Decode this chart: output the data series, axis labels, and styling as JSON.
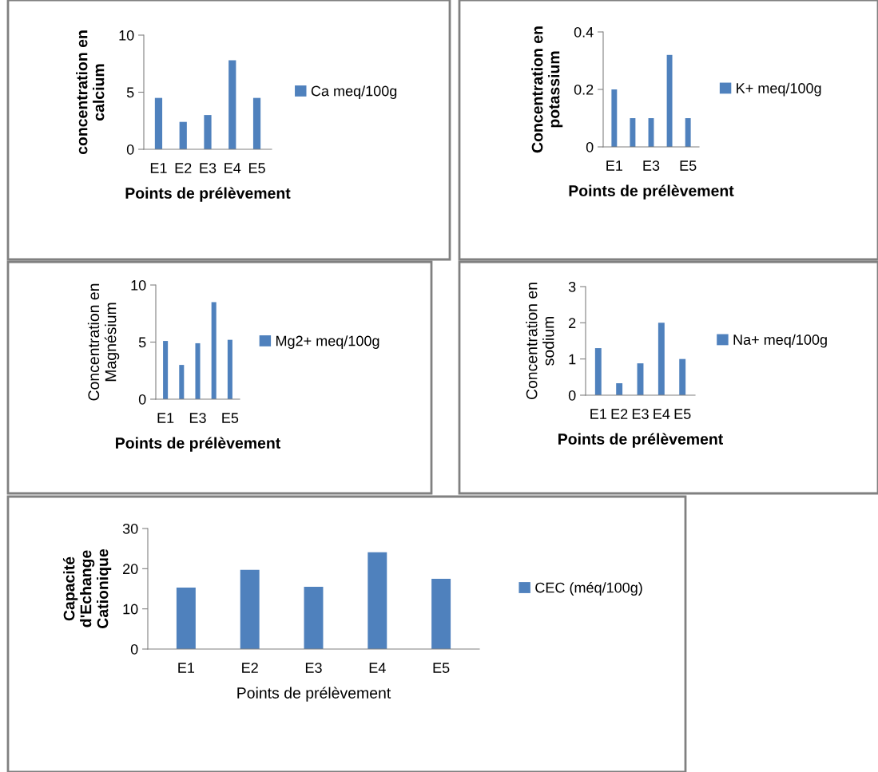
{
  "chart_data": [
    {
      "type": "bar",
      "categories": [
        "E1",
        "E2",
        "E3",
        "E4",
        "E5"
      ],
      "ylabel": "concentration en\ncalcium",
      "xlabel": "Points de prélèvement",
      "ylim": [
        0,
        10
      ],
      "yticks": [
        0,
        5,
        10
      ],
      "legend": "right",
      "series": [
        {
          "name": "Ca meq/100g",
          "color": "#4f81bd",
          "values": [
            4.5,
            2.4,
            3.0,
            7.8,
            4.5
          ]
        }
      ]
    },
    {
      "type": "bar",
      "categories": [
        "E1",
        null,
        "E3",
        null,
        "E5"
      ],
      "ylabel": "Concentration en\npotassium",
      "xlabel": "Points de prélèvement",
      "ylim": [
        0,
        0.4
      ],
      "yticks": [
        0,
        0.2,
        0.4
      ],
      "legend": "right",
      "series": [
        {
          "name": "K+ meq/100g",
          "color": "#4f81bd",
          "values": [
            0.2,
            0.1,
            0.1,
            0.32,
            0.1
          ]
        }
      ]
    },
    {
      "type": "bar",
      "categories": [
        "E1",
        null,
        "E3",
        null,
        "E5"
      ],
      "ylabel": "Concentration en\nMagnésium",
      "xlabel": "Points de prélèvement",
      "ylim": [
        0,
        10
      ],
      "yticks": [
        0,
        5,
        10
      ],
      "legend": "right",
      "series": [
        {
          "name": "Mg2+ meq/100g",
          "color": "#4f81bd",
          "values": [
            5.1,
            3.0,
            4.9,
            8.5,
            5.2
          ]
        }
      ]
    },
    {
      "type": "bar",
      "categories": [
        "E1",
        "E2",
        "E3",
        "E4",
        "E5"
      ],
      "ylabel": "Concentration en\nsodium",
      "xlabel": "Points de prélèvement",
      "ylim": [
        0,
        3
      ],
      "yticks": [
        0,
        1,
        2,
        3
      ],
      "legend": "right",
      "series": [
        {
          "name": "Na+ meq/100g",
          "color": "#4f81bd",
          "values": [
            1.3,
            0.33,
            0.88,
            2.0,
            1.0
          ]
        }
      ]
    },
    {
      "type": "bar",
      "categories": [
        "E1",
        "E2",
        "E3",
        "E4",
        "E5"
      ],
      "ylabel": "Capacité\nd'Echange\nCationique",
      "xlabel": "Points de prélèvement",
      "ylim": [
        0,
        30
      ],
      "yticks": [
        0,
        10,
        20,
        30
      ],
      "legend": "right",
      "series": [
        {
          "name": "CEC (méq/100g)",
          "color": "#4f81bd",
          "values": [
            15.3,
            19.7,
            15.5,
            24.1,
            17.5
          ]
        }
      ]
    }
  ]
}
